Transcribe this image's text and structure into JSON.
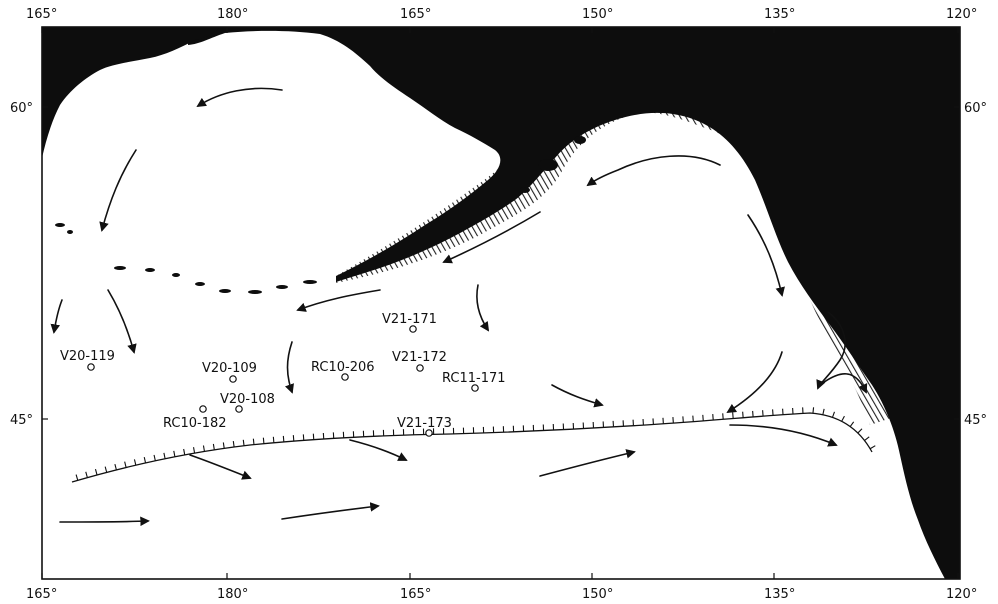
{
  "map": {
    "longitude_ticks": [
      "165°",
      "180°",
      "165°",
      "150°",
      "135°",
      "120°"
    ],
    "latitude_ticks": [
      "60°",
      "45°"
    ],
    "core_sites": [
      {
        "id": "V21-171"
      },
      {
        "id": "V20-119"
      },
      {
        "id": "V20-109"
      },
      {
        "id": "RC10-206"
      },
      {
        "id": "V21-172"
      },
      {
        "id": "RC11-171"
      },
      {
        "id": "V20-108"
      },
      {
        "id": "RC10-182"
      },
      {
        "id": "V21-173"
      }
    ]
  }
}
